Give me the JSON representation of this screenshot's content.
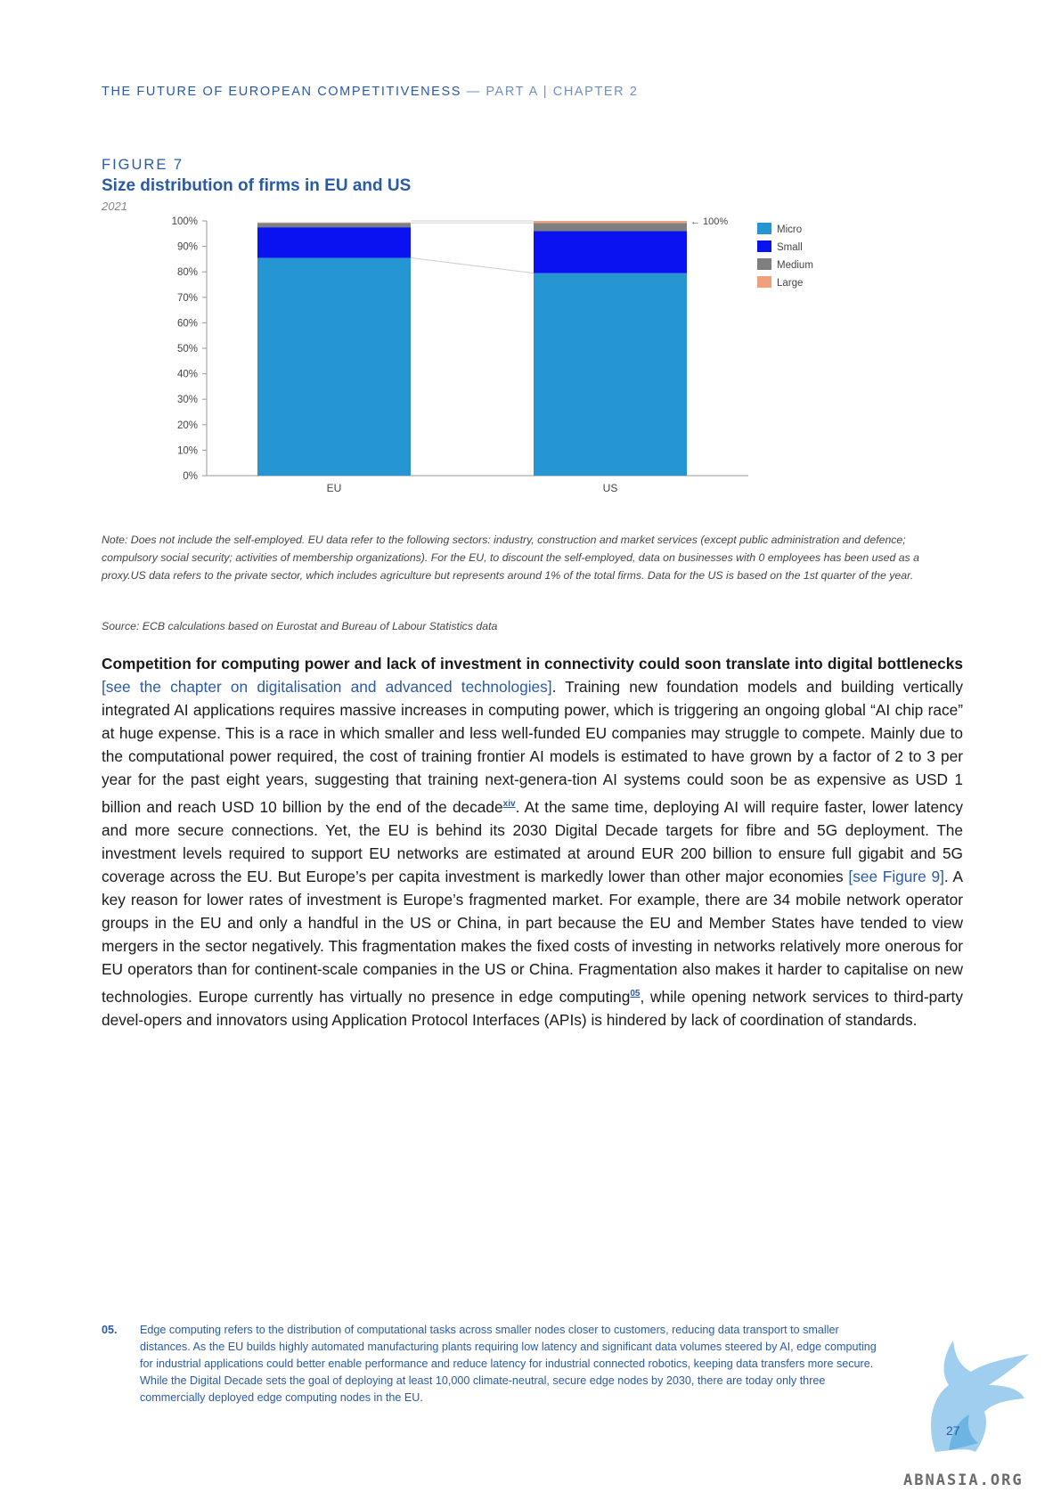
{
  "header": {
    "left": "THE FUTURE OF EUROPEAN COMPETITIVENESS",
    "dash": " — ",
    "right": "PART A | CHAPTER 2"
  },
  "figure": {
    "number": "FIGURE 7",
    "title": "Size distribution of firms in EU and US",
    "year": "2021"
  },
  "chart_data": {
    "type": "bar",
    "stacked": true,
    "categories": [
      "EU",
      "US"
    ],
    "series": [
      {
        "name": "Micro",
        "values": [
          85.5,
          79.5
        ],
        "color": "#2596d2"
      },
      {
        "name": "Small",
        "values": [
          12.0,
          16.5
        ],
        "color": "#0a12f0"
      },
      {
        "name": "Medium",
        "values": [
          1.7,
          3.2
        ],
        "color": "#7f7f7f"
      },
      {
        "name": "Large",
        "values": [
          0.2,
          0.8
        ],
        "color": "#f0a07a"
      }
    ],
    "yticks": [
      "0%",
      "10%",
      "20%",
      "30%",
      "40%",
      "50%",
      "60%",
      "70%",
      "80%",
      "90%",
      "100%"
    ],
    "ylim": [
      0,
      100
    ],
    "annotation": "← 100%",
    "legend": "right",
    "grid": false
  },
  "note": "Note: Does not include the self-employed. EU data refer to the following sectors: industry, construction and market services (except public administration and defence; compulsory social security; activities of membership organizations). For the EU, to discount the self-employed, data on businesses with 0 employees has been used as a proxy.US data refers to the private sector, which includes agriculture but represents around 1% of the total firms. Data for the US is based on the 1st quarter of the year.",
  "source": "Source: ECB calculations based on Eurostat and Bureau of Labour Statistics data",
  "body": {
    "lead_bold": "Competition for computing power and lack of investment in connectivity could soon translate into digital bottlenecks",
    "link1": "[see the chapter on digitalisation and advanced technologies]",
    "text1": ". Training new foundation models and building vertically integrated AI applications requires massive increases in computing power, which is triggering an ongoing global “AI chip race” at huge expense. This is a race in which smaller and less well-funded EU companies may struggle to compete. Mainly due to the computational power required, the cost of training frontier AI models is estimated to have grown by a factor of 2 to 3 per year for the past eight years, suggesting that training next-genera-tion AI systems could soon be as expensive as USD 1 billion and reach USD 10 billion by the end of the decade",
    "ref1": "xiv",
    "text2": ". At the same time, deploying AI will require faster, lower latency and more secure connections. Yet, the EU is behind its 2030 Digital Decade targets for fibre and 5G deployment. The investment levels required to support EU networks are estimated at around EUR 200 billion to ensure full gigabit and 5G coverage across the EU. But Europe’s per capita investment is markedly lower than other major economies ",
    "link2": "[see Figure 9]",
    "text3": ". A key reason for lower rates of investment is Europe’s fragmented market. For example, there are 34 mobile network operator groups in the EU and only a handful in the US or China, in part because the EU and Member States have tended to view mergers in the sector negatively. This fragmentation makes the fixed costs of investing in networks relatively more onerous for EU operators than for continent-scale companies in the US or China. Fragmentation also makes it harder to capitalise on new technologies. Europe currently has virtually no presence in edge computing",
    "ref2": "05",
    "text4": ", while opening network services to third-party devel-opers and innovators using Application Protocol Interfaces (APIs) is hindered by lack of coordination of standards."
  },
  "footnote": {
    "number": "05.",
    "text": "Edge computing refers to the distribution of computational tasks across smaller nodes closer to customers, reducing data transport to smaller distances. As the EU builds highly automated manufacturing plants requiring low latency and significant data volumes steered by AI, edge computing for industrial applications could better enable performance and reduce latency for industrial connected robotics, keeping data transfers more secure. While the Digital Decade sets the goal of deploying at least 10,000 climate-neutral, secure edge nodes by 2030, there are today only three commercially deployed edge computing nodes in the EU."
  },
  "page_number": "27",
  "watermark": "ABNASIA.ORG"
}
